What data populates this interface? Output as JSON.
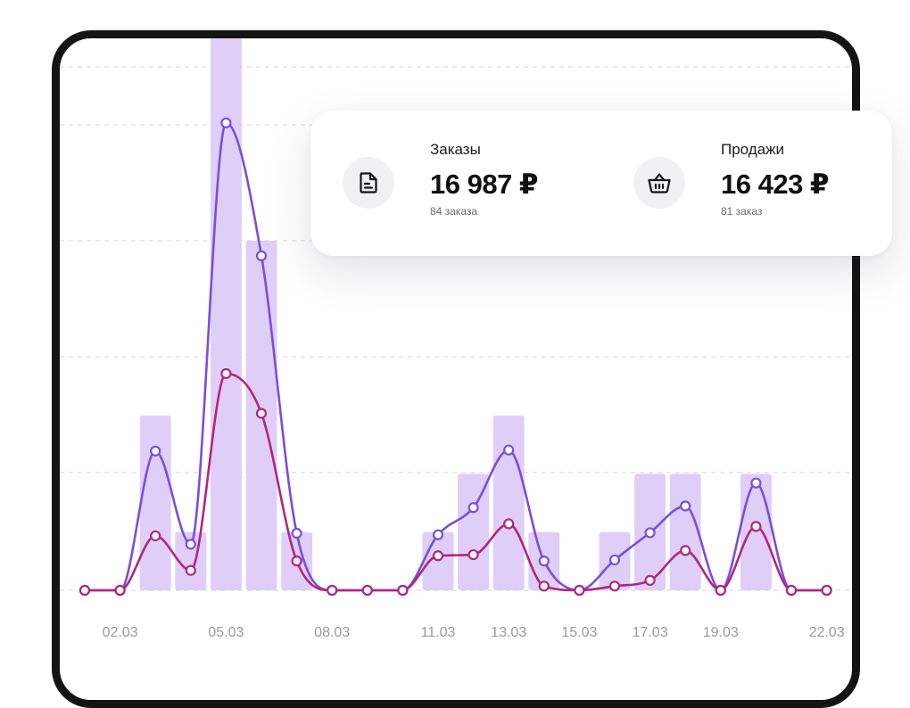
{
  "chart_data": {
    "type": "line",
    "x_tick_labels": [
      "02.03",
      "05.03",
      "08.03",
      "11.03",
      "13.03",
      "15.03",
      "17.03",
      "19.03",
      "22.03"
    ],
    "grid": "horizontal-dashed",
    "legend": "none",
    "colors": {
      "bars": "#dfcff8",
      "orders_line": "#7a4de0",
      "sales_line": "#b0267d",
      "grid": "#dcdcdc",
      "tick_text": "#9a9a9f"
    },
    "bars": [
      0,
      0,
      6,
      2,
      20,
      12,
      2,
      0,
      0,
      0,
      2,
      4,
      6,
      2,
      0,
      2,
      4,
      4,
      0,
      4,
      0,
      0
    ],
    "series": [
      {
        "values": [
          0,
          0,
          26.6,
          8.8,
          89.3,
          63.9,
          10.9,
          0,
          0,
          0,
          10.6,
          15.8,
          26.8,
          5.6,
          0,
          5.8,
          11.0,
          16.1,
          0,
          20.5,
          0,
          0
        ]
      },
      {
        "values": [
          0,
          0,
          10.4,
          3.8,
          41.4,
          33.8,
          5.6,
          0,
          0,
          0,
          6.6,
          6.8,
          12.7,
          0.8,
          0,
          0.8,
          1.9,
          7.6,
          0,
          12.2,
          0,
          0
        ]
      }
    ],
    "ylim": [
      0,
      100
    ]
  },
  "stats": {
    "orders": {
      "label": "Заказы",
      "value": "16 987 ₽",
      "sub": "84 заказа",
      "icon": "document-icon"
    },
    "sales": {
      "label": "Продажи",
      "value": "16 423 ₽",
      "sub": "81 заказ",
      "icon": "basket-icon"
    }
  }
}
